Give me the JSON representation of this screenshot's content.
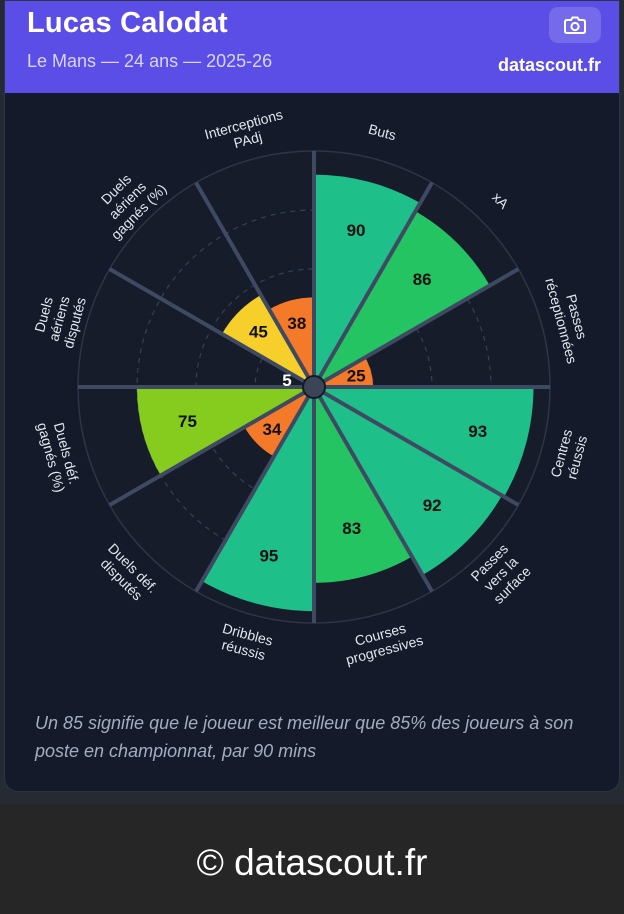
{
  "header": {
    "title": "Lucas Calodat",
    "subtitle": "Le Mans — 24 ans — 2025-26",
    "brand": "datascout.fr"
  },
  "camera_icon": "camera-icon",
  "chart_data": {
    "type": "polar-bar",
    "title": "",
    "max": 100,
    "rings": [
      25,
      50,
      75,
      100
    ],
    "segments": [
      {
        "label": [
          "Buts"
        ],
        "value": 90,
        "color": "#1fbf8a"
      },
      {
        "label": [
          "xA"
        ],
        "value": 86,
        "color": "#25c463"
      },
      {
        "label": [
          "Passes",
          "réceptionnées"
        ],
        "value": 25,
        "color": "#f47a2a"
      },
      {
        "label": [
          "Centres",
          "réussis"
        ],
        "value": 93,
        "color": "#1fbf8a"
      },
      {
        "label": [
          "Passes",
          "vers la",
          "surface"
        ],
        "value": 92,
        "color": "#1fbf8a"
      },
      {
        "label": [
          "Courses",
          "progressives"
        ],
        "value": 83,
        "color": "#25c463"
      },
      {
        "label": [
          "Dribbles",
          "réussis"
        ],
        "value": 95,
        "color": "#1fbf8a"
      },
      {
        "label": [
          "Duels déf.",
          "disputés"
        ],
        "value": 34,
        "color": "#f47a2a"
      },
      {
        "label": [
          "Duels déf.",
          "gagnés (%)"
        ],
        "value": 75,
        "color": "#86cc1e"
      },
      {
        "label": [
          "Duels",
          "aériens",
          "disputés"
        ],
        "value": 5,
        "color": "#e8412f"
      },
      {
        "label": [
          "Duels",
          "aériens",
          "gagnés (%)"
        ],
        "value": 45,
        "color": "#f7cf2a"
      },
      {
        "label": [
          "Interceptions",
          "PAdj"
        ],
        "value": 38,
        "color": "#f47a2a"
      }
    ]
  },
  "footnote": "Un 85 signifie que le joueur est meilleur que 85% des joueurs à son poste en championnat, par 90 mins",
  "bottom": {
    "copyright": "© datascout.fr"
  }
}
